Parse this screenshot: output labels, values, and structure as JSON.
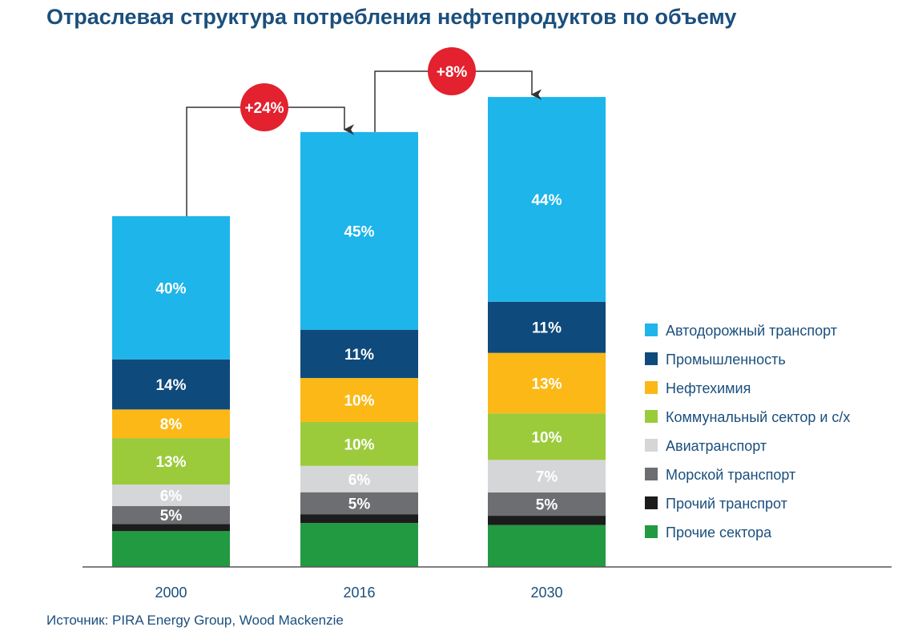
{
  "chart_data": {
    "type": "bar",
    "stacked": true,
    "title": "Отраслевая структура потребления нефтепродуктов по объему",
    "source": "Источник: PIRA Energy Group, Wood Mackenzie",
    "categories": [
      "2000",
      "2016",
      "2030"
    ],
    "totals_relative_to_2000": [
      1.0,
      1.24,
      1.34
    ],
    "series": [
      {
        "name": "Прочие сектора",
        "color": "#229a41",
        "values": [
          10,
          10,
          9
        ],
        "labels": [
          "",
          "",
          ""
        ]
      },
      {
        "name": "Прочий транспрот",
        "color": "#1c1c1c",
        "values": [
          2,
          2,
          2
        ],
        "labels": [
          "",
          "",
          ""
        ]
      },
      {
        "name": "Морской транспорт",
        "color": "#6d6e71",
        "values": [
          5,
          5,
          5
        ],
        "labels": [
          "5%",
          "5%",
          "5%"
        ]
      },
      {
        "name": "Авиатранспорт",
        "color": "#d5d6d8",
        "values": [
          6,
          6,
          7
        ],
        "labels": [
          "6%",
          "6%",
          "7%"
        ]
      },
      {
        "name": "Коммунальный сектор и с/х",
        "color": "#9bcb3b",
        "values": [
          13,
          10,
          10
        ],
        "labels": [
          "13%",
          "10%",
          "10%"
        ]
      },
      {
        "name": "Нефтехимия",
        "color": "#fbb817",
        "values": [
          8,
          10,
          13
        ],
        "labels": [
          "8%",
          "10%",
          "13%"
        ]
      },
      {
        "name": "Промышленность",
        "color": "#0f4a7c",
        "values": [
          14,
          11,
          11
        ],
        "labels": [
          "14%",
          "11%",
          "11%"
        ]
      },
      {
        "name": "Автодорожный транспорт",
        "color": "#1db5ea",
        "values": [
          40,
          45,
          44
        ],
        "labels": [
          "40%",
          "45%",
          "44%"
        ]
      }
    ],
    "legend": {
      "position": "right",
      "order": [
        "Автодорожный транспорт",
        "Промышленность",
        "Нефтехимия",
        "Коммунальный сектор и с/х",
        "Авиатранспорт",
        "Морской транспорт",
        "Прочий транспрот",
        "Прочие сектора"
      ]
    },
    "annotations": [
      {
        "from": "2000",
        "to": "2016",
        "text": "+24%"
      },
      {
        "from": "2016",
        "to": "2030",
        "text": "+8%"
      }
    ],
    "badge_color": "#e3212f",
    "text_color": "#1b4f7d"
  }
}
